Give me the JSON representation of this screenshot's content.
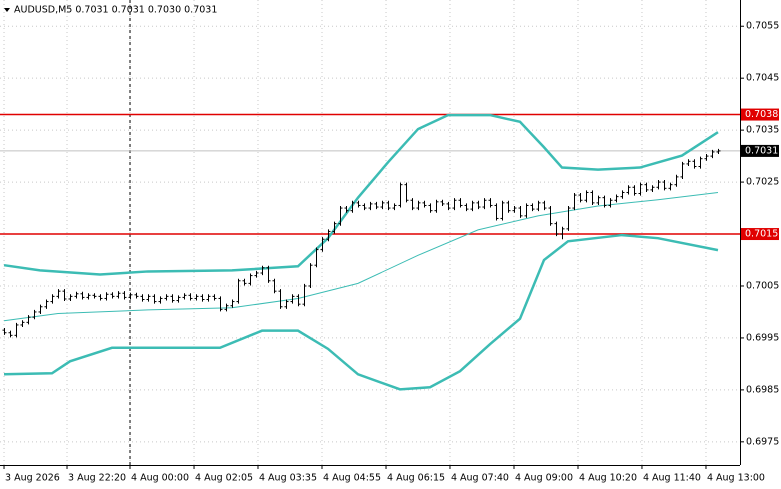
{
  "chart_data": {
    "type": "ohlc",
    "title": "AUDUSD,M5  0.7031 0.7031 0.7030 0.7031",
    "bar_color": "#000000",
    "bars": [
      [
        0.69965,
        0.69969,
        0.69956,
        0.6996
      ],
      [
        0.6996,
        0.69964,
        0.69951,
        0.69955
      ],
      [
        0.69955,
        0.69979,
        0.69951,
        0.69975
      ],
      [
        0.69975,
        0.69984,
        0.69971,
        0.6998
      ],
      [
        0.6998,
        0.69994,
        0.69976,
        0.6999
      ],
      [
        0.6999,
        0.70004,
        0.69986,
        0.7
      ],
      [
        0.7,
        0.70014,
        0.69996,
        0.7001
      ],
      [
        0.7001,
        0.70024,
        0.70006,
        0.7002
      ],
      [
        0.7002,
        0.70034,
        0.70016,
        0.7003
      ],
      [
        0.7003,
        0.70044,
        0.70026,
        0.7004
      ],
      [
        0.7004,
        0.70044,
        0.70021,
        0.70025
      ],
      [
        0.70025,
        0.70034,
        0.70021,
        0.7003
      ],
      [
        0.7003,
        0.70039,
        0.70026,
        0.70035
      ],
      [
        0.70035,
        0.70039,
        0.70024,
        0.70028
      ],
      [
        0.70028,
        0.70036,
        0.70024,
        0.70032
      ],
      [
        0.70032,
        0.70036,
        0.70026,
        0.7003
      ],
      [
        0.7003,
        0.70034,
        0.70022,
        0.70026
      ],
      [
        0.70026,
        0.70038,
        0.70022,
        0.70034
      ],
      [
        0.70034,
        0.70038,
        0.70026,
        0.7003
      ],
      [
        0.7003,
        0.7004,
        0.70026,
        0.70036
      ],
      [
        0.70036,
        0.7004,
        0.70024,
        0.70028
      ],
      [
        0.70028,
        0.70037,
        0.70024,
        0.70033
      ],
      [
        0.70033,
        0.70037,
        0.70026,
        0.7003
      ],
      [
        0.7003,
        0.70034,
        0.7002,
        0.70024
      ],
      [
        0.70024,
        0.70034,
        0.7002,
        0.7003
      ],
      [
        0.7003,
        0.70034,
        0.70016,
        0.7002
      ],
      [
        0.7002,
        0.7003,
        0.70016,
        0.70026
      ],
      [
        0.70026,
        0.70034,
        0.70022,
        0.7003
      ],
      [
        0.7003,
        0.70034,
        0.70018,
        0.70022
      ],
      [
        0.70022,
        0.70032,
        0.70018,
        0.70028
      ],
      [
        0.70028,
        0.70036,
        0.70024,
        0.70032
      ],
      [
        0.70032,
        0.70036,
        0.70022,
        0.70026
      ],
      [
        0.70026,
        0.70034,
        0.70022,
        0.7003
      ],
      [
        0.7003,
        0.70034,
        0.7002,
        0.70024
      ],
      [
        0.70024,
        0.70034,
        0.7002,
        0.7003
      ],
      [
        0.7003,
        0.70034,
        0.70022,
        0.70026
      ],
      [
        0.70026,
        0.7003,
        0.70001,
        0.70005
      ],
      [
        0.70005,
        0.70016,
        0.70001,
        0.70012
      ],
      [
        0.70012,
        0.70024,
        0.70008,
        0.7002
      ],
      [
        0.7002,
        0.70064,
        0.70016,
        0.7006
      ],
      [
        0.7006,
        0.70064,
        0.70051,
        0.70055
      ],
      [
        0.70055,
        0.70074,
        0.70051,
        0.7007
      ],
      [
        0.7007,
        0.70079,
        0.70066,
        0.70075
      ],
      [
        0.70075,
        0.70089,
        0.70071,
        0.70085
      ],
      [
        0.70085,
        0.70089,
        0.70056,
        0.7006
      ],
      [
        0.7006,
        0.70064,
        0.70036,
        0.7004
      ],
      [
        0.7004,
        0.70044,
        0.70006,
        0.7001
      ],
      [
        0.7001,
        0.70024,
        0.70006,
        0.7002
      ],
      [
        0.7002,
        0.70034,
        0.70016,
        0.7003
      ],
      [
        0.7003,
        0.70034,
        0.70011,
        0.70015
      ],
      [
        0.70015,
        0.70054,
        0.70011,
        0.7005
      ],
      [
        0.7005,
        0.70094,
        0.70046,
        0.7009
      ],
      [
        0.7009,
        0.70124,
        0.70086,
        0.7012
      ],
      [
        0.7012,
        0.70144,
        0.70116,
        0.7014
      ],
      [
        0.7014,
        0.70159,
        0.70136,
        0.70155
      ],
      [
        0.70155,
        0.70174,
        0.70151,
        0.7017
      ],
      [
        0.7017,
        0.70204,
        0.70166,
        0.702
      ],
      [
        0.702,
        0.70204,
        0.70191,
        0.70195
      ],
      [
        0.70195,
        0.70214,
        0.70191,
        0.7021
      ],
      [
        0.7021,
        0.70214,
        0.70201,
        0.70205
      ],
      [
        0.70205,
        0.70209,
        0.70196,
        0.702
      ],
      [
        0.702,
        0.70212,
        0.70196,
        0.70208
      ],
      [
        0.70208,
        0.70212,
        0.70198,
        0.70202
      ],
      [
        0.70202,
        0.70214,
        0.70198,
        0.7021
      ],
      [
        0.7021,
        0.70214,
        0.70196,
        0.702
      ],
      [
        0.702,
        0.70209,
        0.70196,
        0.70205
      ],
      [
        0.70205,
        0.70249,
        0.70201,
        0.70245
      ],
      [
        0.70245,
        0.70249,
        0.70211,
        0.70215
      ],
      [
        0.70215,
        0.70219,
        0.70196,
        0.702
      ],
      [
        0.702,
        0.70214,
        0.70196,
        0.7021
      ],
      [
        0.7021,
        0.70214,
        0.70201,
        0.70205
      ],
      [
        0.70205,
        0.70209,
        0.70191,
        0.70195
      ],
      [
        0.70195,
        0.70216,
        0.70191,
        0.70212
      ],
      [
        0.70212,
        0.70216,
        0.70204,
        0.70208
      ],
      [
        0.70208,
        0.70212,
        0.70196,
        0.702
      ],
      [
        0.702,
        0.70219,
        0.70196,
        0.70215
      ],
      [
        0.70215,
        0.70219,
        0.70201,
        0.70205
      ],
      [
        0.70205,
        0.70209,
        0.70194,
        0.70198
      ],
      [
        0.70198,
        0.70214,
        0.70194,
        0.7021
      ],
      [
        0.7021,
        0.70214,
        0.70198,
        0.70202
      ],
      [
        0.70202,
        0.70219,
        0.70198,
        0.70215
      ],
      [
        0.70215,
        0.70219,
        0.70201,
        0.70205
      ],
      [
        0.70205,
        0.70209,
        0.70176,
        0.7018
      ],
      [
        0.7018,
        0.70214,
        0.70176,
        0.7021
      ],
      [
        0.7021,
        0.70214,
        0.70191,
        0.70195
      ],
      [
        0.70195,
        0.70204,
        0.70191,
        0.702
      ],
      [
        0.702,
        0.70204,
        0.70181,
        0.70185
      ],
      [
        0.70185,
        0.70209,
        0.70181,
        0.70205
      ],
      [
        0.70205,
        0.70209,
        0.70194,
        0.70198
      ],
      [
        0.70198,
        0.70214,
        0.70194,
        0.7021
      ],
      [
        0.7021,
        0.70214,
        0.70196,
        0.702
      ],
      [
        0.702,
        0.70204,
        0.70166,
        0.7017
      ],
      [
        0.7017,
        0.70174,
        0.70146,
        0.7015
      ],
      [
        0.7015,
        0.70164,
        0.7014,
        0.7016
      ],
      [
        0.7016,
        0.70204,
        0.70156,
        0.702
      ],
      [
        0.702,
        0.70229,
        0.70196,
        0.70225
      ],
      [
        0.70225,
        0.70229,
        0.70211,
        0.70215
      ],
      [
        0.70215,
        0.70234,
        0.70211,
        0.7023
      ],
      [
        0.7023,
        0.70234,
        0.70206,
        0.7021
      ],
      [
        0.7021,
        0.70224,
        0.70206,
        0.7022
      ],
      [
        0.7022,
        0.70224,
        0.70201,
        0.70205
      ],
      [
        0.70205,
        0.70219,
        0.70201,
        0.70215
      ],
      [
        0.70215,
        0.70226,
        0.70211,
        0.70222
      ],
      [
        0.70222,
        0.70234,
        0.70218,
        0.7023
      ],
      [
        0.7023,
        0.70244,
        0.70226,
        0.7024
      ],
      [
        0.7024,
        0.70244,
        0.70224,
        0.70228
      ],
      [
        0.70228,
        0.70249,
        0.70224,
        0.70245
      ],
      [
        0.70245,
        0.70249,
        0.70231,
        0.70235
      ],
      [
        0.70235,
        0.70244,
        0.70231,
        0.7024
      ],
      [
        0.7024,
        0.70254,
        0.70236,
        0.7025
      ],
      [
        0.7025,
        0.70254,
        0.70234,
        0.70238
      ],
      [
        0.70238,
        0.70249,
        0.70234,
        0.70245
      ],
      [
        0.70245,
        0.70264,
        0.70241,
        0.7026
      ],
      [
        0.7026,
        0.70289,
        0.70256,
        0.70285
      ],
      [
        0.70285,
        0.70294,
        0.70281,
        0.7029
      ],
      [
        0.7029,
        0.70294,
        0.70276,
        0.7028
      ],
      [
        0.7028,
        0.70299,
        0.70276,
        0.70295
      ],
      [
        0.70295,
        0.70304,
        0.70291,
        0.703
      ],
      [
        0.703,
        0.70312,
        0.70296,
        0.70308
      ],
      [
        0.70308,
        0.70314,
        0.70304,
        0.7031
      ]
    ],
    "bands": [
      {
        "color": "#3cbcb4",
        "width": 2.5,
        "x": [
          0,
          6,
          16,
          24,
          38,
          49,
          54,
          59,
          64,
          69,
          74,
          81,
          86,
          90,
          93,
          99,
          106,
          113,
          119
        ],
        "values": [
          0.7009,
          0.7008,
          0.70072,
          0.70078,
          0.7008,
          0.70088,
          0.70142,
          0.7022,
          0.70288,
          0.70352,
          0.70379,
          0.70379,
          0.70366,
          0.70317,
          0.70278,
          0.70274,
          0.70278,
          0.70301,
          0.70346
        ]
      },
      {
        "color": "#3cbcb4",
        "width": 1,
        "x": [
          0,
          9,
          24,
          38,
          49,
          59,
          69,
          79,
          89,
          99,
          109,
          119
        ],
        "values": [
          0.69983,
          0.69997,
          0.70004,
          0.70008,
          0.70026,
          0.70055,
          0.70109,
          0.70158,
          0.70185,
          0.70204,
          0.70216,
          0.7023
        ]
      },
      {
        "color": "#3cbcb4",
        "width": 2.5,
        "x": [
          0,
          8,
          11,
          18,
          36,
          43,
          49,
          54,
          59,
          66,
          71,
          76,
          81,
          86,
          90,
          94,
          103,
          109,
          119
        ],
        "values": [
          0.6988,
          0.69882,
          0.69905,
          0.69931,
          0.69931,
          0.69964,
          0.69964,
          0.69929,
          0.6988,
          0.69851,
          0.69855,
          0.69886,
          0.69938,
          0.69987,
          0.701,
          0.70136,
          0.70148,
          0.70142,
          0.70119
        ]
      }
    ],
    "levels": [
      {
        "value": 0.7038,
        "color": "#e00000"
      },
      {
        "value": 0.7015,
        "color": "#e00000"
      }
    ],
    "current_price": 0.7031,
    "separator_x": 21,
    "grid": true,
    "ylim": [
      0.697054,
      0.706005
    ],
    "yticks": [
      0.7055,
      0.7045,
      0.7035,
      0.7025,
      0.7005,
      0.6995,
      0.6985,
      0.6975
    ],
    "xlim": [
      -0.67,
      122.67
    ],
    "xticks": [
      {
        "value": 0,
        "label": "3 Aug 2026"
      },
      {
        "value": 10.5,
        "label": "3 Aug 22:20"
      },
      {
        "value": 21,
        "label": "4 Aug 00:00"
      },
      {
        "value": 31.67,
        "label": "4 Aug 02:05"
      },
      {
        "value": 42.33,
        "label": "4 Aug 03:35"
      },
      {
        "value": 53,
        "label": "4 Aug 04:55"
      },
      {
        "value": 63.67,
        "label": "4 Aug 06:15"
      },
      {
        "value": 74.33,
        "label": "4 Aug 07:40"
      },
      {
        "value": 85,
        "label": "4 Aug 09:00"
      },
      {
        "value": 95.67,
        "label": "4 Aug 10:20"
      },
      {
        "value": 106.33,
        "label": "4 Aug 11:40"
      },
      {
        "value": 117,
        "label": "4 Aug 13:00"
      }
    ]
  }
}
